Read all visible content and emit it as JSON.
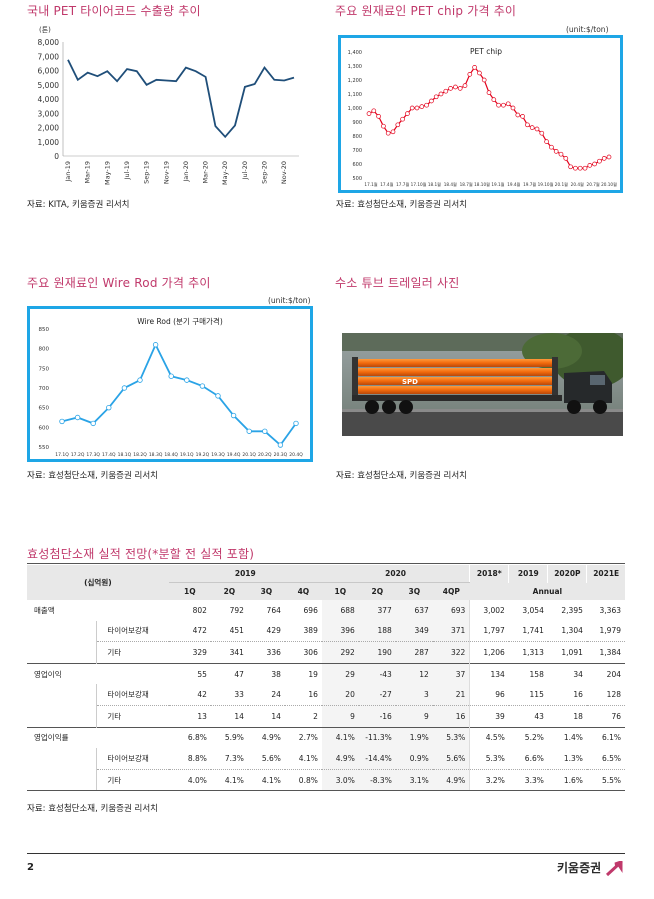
{
  "chart1": {
    "title": "국내 PET 타이어코드 수출량 추이",
    "unit": "(톤)",
    "source": "자료: KITA, 키움증권 리서치"
  },
  "chart2": {
    "title": "주요 원재료인 PET chip 가격 추이",
    "unit": "(unit:$/ton)",
    "source": "자료: 효성첨단소재, 키움증권 리서치"
  },
  "chart3": {
    "title": "주요 원재료인 Wire Rod 가격 추이",
    "unit": "(unit:$/ton)",
    "source": "자료: 효성첨단소재, 키움증권 리서치"
  },
  "photo": {
    "title": "수소 튜브 트레일러 사진",
    "source": "자료: 효성첨단소재, 키움증권 리서치",
    "truck_text": "SPD"
  },
  "chart_data": [
    {
      "type": "line",
      "ylabel": "(톤)",
      "ylim": [
        0,
        8000
      ],
      "yticks": [
        "0",
        "1,000",
        "2,000",
        "3,000",
        "4,000",
        "5,000",
        "6,000",
        "7,000",
        "8,000"
      ],
      "x": [
        "Jan-19",
        "Feb-19",
        "Mar-19",
        "Apr-19",
        "May-19",
        "Jun-19",
        "Jul-19",
        "Aug-19",
        "Sep-19",
        "Oct-19",
        "Nov-19",
        "Dec-19",
        "Jan-20",
        "Feb-20",
        "Mar-20",
        "Apr-20",
        "May-20",
        "Jun-20",
        "Jul-20",
        "Aug-20",
        "Sep-20",
        "Oct-20",
        "Nov-20",
        "Dec-20"
      ],
      "xtick_labels": [
        "Jan-19",
        "Mar-19",
        "May-19",
        "Jul-19",
        "Sep-19",
        "Nov-19",
        "Jan-20",
        "Mar-20",
        "May-20",
        "Jul-20",
        "Sep-20",
        "Nov-20"
      ],
      "values": [
        6750,
        5350,
        5850,
        5600,
        5950,
        5250,
        6100,
        5950,
        5000,
        5350,
        5300,
        5250,
        6200,
        5950,
        5550,
        2100,
        1350,
        2150,
        4850,
        5050,
        6200,
        5350,
        5300,
        5500
      ],
      "color": "#1f4e79"
    },
    {
      "type": "line",
      "title": "PET chip",
      "ylabel": "(unit:$/ton)",
      "ylim": [
        500,
        1400
      ],
      "yticks": [
        "500",
        "600",
        "700",
        "800",
        "900",
        "1,000",
        "1,100",
        "1,200",
        "1,300",
        "1,400"
      ],
      "xtick_labels": [
        "17.1월",
        "17.4월",
        "17.7월",
        "17.10월",
        "18.1월",
        "18.4월",
        "18.7월",
        "18.10월",
        "19.1월",
        "19.4월",
        "19.7월",
        "19.10월",
        "20.1월",
        "20.4월",
        "20.7월",
        "20.10월"
      ],
      "values": [
        960,
        980,
        940,
        870,
        820,
        830,
        880,
        920,
        960,
        1000,
        1000,
        1010,
        1020,
        1050,
        1080,
        1100,
        1120,
        1140,
        1150,
        1140,
        1160,
        1240,
        1290,
        1250,
        1200,
        1110,
        1060,
        1020,
        1020,
        1030,
        1000,
        950,
        940,
        880,
        860,
        850,
        820,
        760,
        720,
        690,
        670,
        640,
        580,
        570,
        570,
        570,
        590,
        600,
        620,
        640,
        650
      ],
      "color": "#e3001b"
    },
    {
      "type": "line",
      "title": "Wire Rod (분기 구매가격)",
      "ylabel": "(unit:$/ton)",
      "ylim": [
        550,
        850
      ],
      "yticks": [
        "550",
        "600",
        "650",
        "700",
        "750",
        "800",
        "850"
      ],
      "categories": [
        "17.1Q",
        "17.2Q",
        "17.3Q",
        "17.4Q",
        "18.1Q",
        "18.2Q",
        "18.3Q",
        "18.4Q",
        "19.1Q",
        "19.2Q",
        "19.3Q",
        "19.4Q",
        "20.1Q",
        "20.2Q",
        "20.3Q",
        "20.4Q"
      ],
      "values": [
        615,
        625,
        610,
        650,
        700,
        720,
        810,
        730,
        720,
        705,
        680,
        630,
        590,
        590,
        555,
        610
      ],
      "color": "#2aa3e6"
    }
  ],
  "table": {
    "title": "효성첨단소재 실적 전망(*분할 전 실적 포함)",
    "unit_label": "(십억원)",
    "year_headers": [
      "2019",
      "2020"
    ],
    "quarter_headers": [
      "1Q",
      "2Q",
      "3Q",
      "4Q",
      "1Q",
      "2Q",
      "3Q",
      "4QP"
    ],
    "annual_headers": [
      "2018*",
      "2019",
      "2020P",
      "2021E"
    ],
    "annual_label": "Annual",
    "rows": [
      {
        "label": "매출액",
        "sub": false,
        "values": [
          "802",
          "792",
          "764",
          "696",
          "688",
          "377",
          "637",
          "693",
          "3,002",
          "3,054",
          "2,395",
          "3,363"
        ]
      },
      {
        "label": "타이어보강재",
        "sub": true,
        "values": [
          "472",
          "451",
          "429",
          "389",
          "396",
          "188",
          "349",
          "371",
          "1,797",
          "1,741",
          "1,304",
          "1,979"
        ]
      },
      {
        "label": "기타",
        "sub": true,
        "values": [
          "329",
          "341",
          "336",
          "306",
          "292",
          "190",
          "287",
          "322",
          "1,206",
          "1,313",
          "1,091",
          "1,384"
        ]
      },
      {
        "label": "영업이익",
        "sub": false,
        "values": [
          "55",
          "47",
          "38",
          "19",
          "29",
          "-43",
          "12",
          "37",
          "134",
          "158",
          "34",
          "204"
        ]
      },
      {
        "label": "타이어보강재",
        "sub": true,
        "values": [
          "42",
          "33",
          "24",
          "16",
          "20",
          "-27",
          "3",
          "21",
          "96",
          "115",
          "16",
          "128"
        ]
      },
      {
        "label": "기타",
        "sub": true,
        "values": [
          "13",
          "14",
          "14",
          "2",
          "9",
          "-16",
          "9",
          "16",
          "39",
          "43",
          "18",
          "76"
        ]
      },
      {
        "label": "영업이익률",
        "sub": false,
        "values": [
          "6.8%",
          "5.9%",
          "4.9%",
          "2.7%",
          "4.1%",
          "-11.3%",
          "1.9%",
          "5.3%",
          "4.5%",
          "5.2%",
          "1.4%",
          "6.1%"
        ]
      },
      {
        "label": "타이어보강재",
        "sub": true,
        "values": [
          "8.8%",
          "7.3%",
          "5.6%",
          "4.1%",
          "4.9%",
          "-14.4%",
          "0.9%",
          "5.6%",
          "5.3%",
          "6.6%",
          "1.3%",
          "6.5%"
        ]
      },
      {
        "label": "기타",
        "sub": true,
        "values": [
          "4.0%",
          "4.1%",
          "4.1%",
          "0.8%",
          "3.0%",
          "-8.3%",
          "3.1%",
          "4.9%",
          "3.2%",
          "3.3%",
          "1.6%",
          "5.5%"
        ]
      }
    ],
    "source": "자료: 효성첨단소재, 키움증권 리서치"
  },
  "footer": {
    "page_number": "2",
    "brand": "키움증권"
  },
  "colors": {
    "accent_title": "#c0396b",
    "frame_blue": "#1ea6e6",
    "header_gray": "#e8e8e8"
  }
}
